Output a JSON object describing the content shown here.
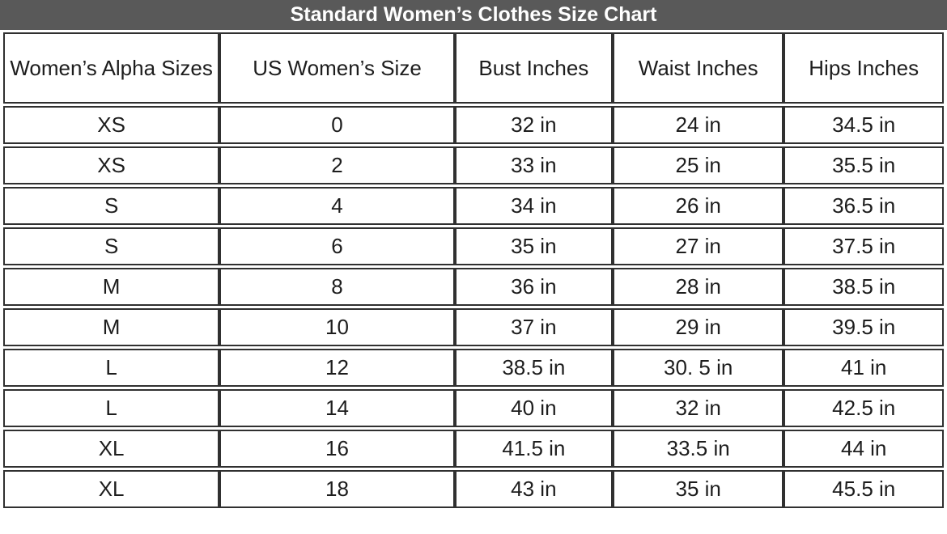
{
  "title_bar": {
    "label": "Standard Women’s Clothes Size Chart"
  },
  "colors": {
    "title_bg": "#595959",
    "title_text": "#ffffff",
    "border": "#303030",
    "cell_bg": "#ffffff",
    "text": "#1d1d1d"
  },
  "chart_data": {
    "type": "table",
    "title": "Standard Women’s Clothes Size Chart",
    "columns": [
      "Women’s Alpha Sizes",
      "US Women’s Size",
      "Bust Inches",
      "Waist Inches",
      "Hips Inches"
    ],
    "rows": [
      [
        "XS",
        "0",
        "32 in",
        "24 in",
        "34.5 in"
      ],
      [
        "XS",
        "2",
        "33 in",
        "25 in",
        "35.5 in"
      ],
      [
        "S",
        "4",
        "34 in",
        "26 in",
        "36.5 in"
      ],
      [
        "S",
        "6",
        "35 in",
        "27 in",
        "37.5 in"
      ],
      [
        "M",
        "8",
        "36 in",
        "28 in",
        "38.5 in"
      ],
      [
        "M",
        "10",
        "37 in",
        "29 in",
        "39.5 in"
      ],
      [
        "L",
        "12",
        "38.5 in",
        "30. 5 in",
        "41 in"
      ],
      [
        "L",
        "14",
        "40 in",
        "32 in",
        "42.5 in"
      ],
      [
        "XL",
        "16",
        "41.5 in",
        "33.5 in",
        "44 in"
      ],
      [
        "XL",
        "18",
        "43 in",
        "35 in",
        "45.5 in"
      ]
    ]
  }
}
